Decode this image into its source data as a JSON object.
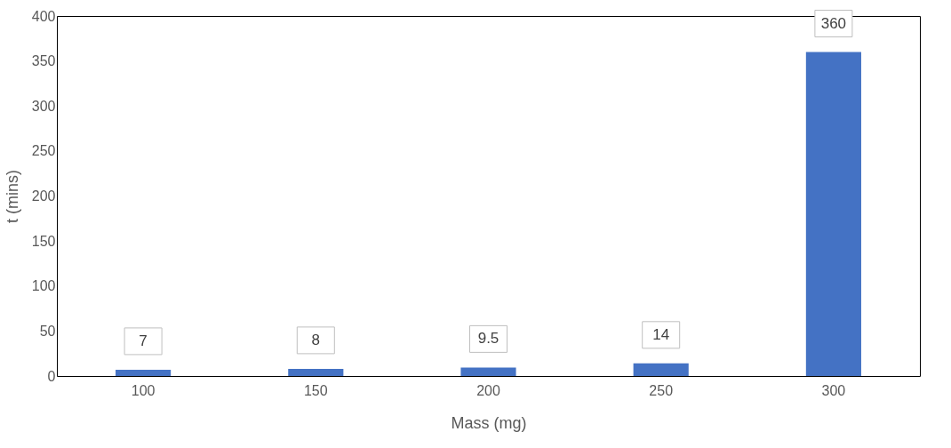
{
  "chart_data": {
    "type": "bar",
    "xlabel": "Mass (mg)",
    "ylabel": "t (mins)",
    "categories": [
      "100",
      "150",
      "200",
      "250",
      "300"
    ],
    "series": [
      {
        "color": "#4472c4",
        "values": [
          7,
          8,
          9.5,
          14,
          360
        ]
      }
    ],
    "ylim": [
      0,
      400
    ],
    "yticks": [
      0,
      50,
      100,
      150,
      200,
      250,
      300,
      350,
      400
    ],
    "data_labels": true,
    "grid": false
  }
}
